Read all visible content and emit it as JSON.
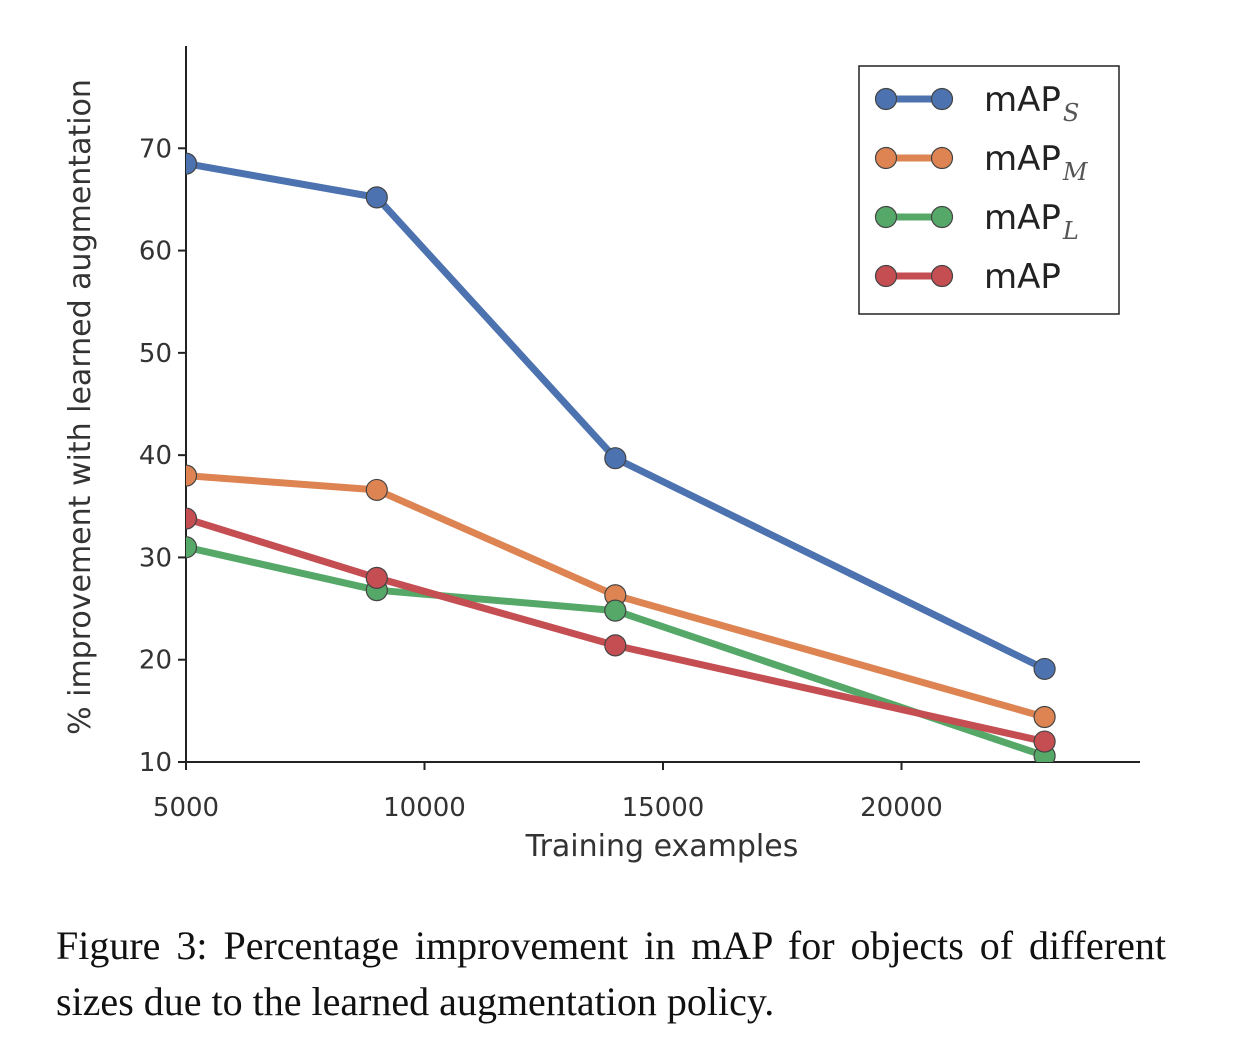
{
  "chart_data": {
    "type": "line",
    "xlabel": "Training examples",
    "ylabel": "% improvement with learned augmentation",
    "xticks": [
      5000,
      10000,
      15000,
      20000
    ],
    "yticks": [
      10,
      20,
      30,
      40,
      50,
      60,
      70
    ],
    "xlim": [
      5000,
      25000
    ],
    "ylim": [
      10,
      80
    ],
    "grid": false,
    "legend_position": "top-right",
    "x": [
      5000,
      9000,
      14000,
      23000
    ],
    "series": [
      {
        "name": "mAP",
        "subscript": "S",
        "color": "#4c72b0",
        "values": [
          68.5,
          65.2,
          39.7,
          19.1
        ]
      },
      {
        "name": "mAP",
        "subscript": "M",
        "color": "#dd8452",
        "values": [
          38.0,
          36.6,
          26.3,
          14.4
        ]
      },
      {
        "name": "mAP",
        "subscript": "L",
        "color": "#55a868",
        "values": [
          31.0,
          26.8,
          24.8,
          10.6
        ]
      },
      {
        "name": "mAP",
        "subscript": "",
        "color": "#c44e52",
        "values": [
          33.8,
          28.0,
          21.4,
          12.0
        ]
      }
    ]
  },
  "caption": "Figure 3: Percentage improvement in mAP for objects of different sizes due to the learned augmentation policy."
}
